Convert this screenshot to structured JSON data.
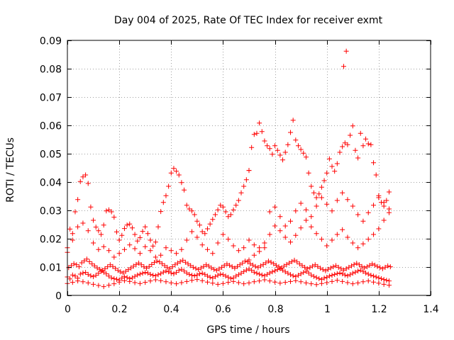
{
  "chart_data": {
    "type": "scatter",
    "title": "Day 004 of 2025, Rate Of TEC Index for receiver exmt",
    "xlabel": "GPS time / hours",
    "ylabel": "ROTI / TECUs",
    "xlim": [
      0,
      1.4
    ],
    "ylim": [
      0,
      0.09
    ],
    "xticks": [
      "0",
      "0.2",
      "0.4",
      "0.6",
      "0.8",
      "1",
      "1.2",
      "1.4"
    ],
    "xtick_values": [
      0,
      0.2,
      0.4,
      0.6,
      0.8,
      1.0,
      1.2,
      1.4
    ],
    "yticks": [
      "0",
      "0.01",
      "0.02",
      "0.03",
      "0.04",
      "0.05",
      "0.06",
      "0.07",
      "0.08",
      "0.09"
    ],
    "ytick_values": [
      0,
      0.01,
      0.02,
      0.03,
      0.04,
      0.05,
      0.06,
      0.07,
      0.08,
      0.09
    ],
    "grid": true,
    "marker": "+",
    "color": "#ff0000",
    "series": [
      {
        "x": [
          0.0,
          0.01,
          0.02,
          0.03,
          0.04,
          0.05,
          0.06,
          0.07,
          0.08,
          0.09,
          0.1,
          0.11,
          0.12,
          0.13,
          0.14,
          0.15,
          0.16,
          0.17,
          0.18,
          0.19,
          0.2,
          0.21,
          0.22,
          0.23,
          0.24,
          0.25,
          0.26,
          0.27,
          0.28,
          0.29,
          0.3,
          0.31,
          0.32,
          0.33,
          0.34,
          0.35,
          0.36,
          0.37,
          0.38,
          0.39,
          0.4,
          0.41,
          0.42,
          0.43,
          0.44,
          0.45,
          0.46,
          0.47,
          0.48,
          0.49,
          0.5,
          0.51,
          0.52,
          0.53,
          0.54,
          0.55,
          0.56,
          0.57,
          0.58,
          0.59,
          0.6,
          0.61,
          0.62,
          0.63,
          0.64,
          0.65,
          0.66,
          0.67,
          0.68,
          0.69,
          0.7,
          0.71,
          0.72,
          0.73,
          0.74,
          0.75,
          0.76,
          0.77,
          0.78,
          0.79,
          0.8,
          0.81,
          0.82,
          0.83,
          0.84,
          0.85,
          0.86,
          0.87,
          0.88,
          0.89,
          0.9,
          0.91,
          0.92,
          0.93,
          0.94,
          0.95,
          0.96,
          0.97,
          0.98,
          0.99,
          1.0,
          1.01,
          1.02,
          1.03,
          1.04,
          1.05,
          1.06,
          1.07,
          1.08,
          1.09,
          1.1,
          1.11,
          1.12,
          1.13,
          1.14,
          1.15,
          1.16,
          1.17,
          1.18,
          1.19,
          1.2,
          1.21,
          1.22,
          1.23,
          1.24
        ],
        "y": [
          0.0065,
          0.0058,
          0.0072,
          0.0068,
          0.0061,
          0.0075,
          0.0079,
          0.0081,
          0.0074,
          0.0069,
          0.0066,
          0.0071,
          0.0078,
          0.0085,
          0.0082,
          0.0076,
          0.0068,
          0.0062,
          0.0059,
          0.0057,
          0.0054,
          0.0061,
          0.0066,
          0.0063,
          0.0059,
          0.0062,
          0.0067,
          0.0072,
          0.0075,
          0.0078,
          0.0081,
          0.0079,
          0.0074,
          0.0071,
          0.0069,
          0.0073,
          0.0077,
          0.0082,
          0.0086,
          0.0083,
          0.0079,
          0.0076,
          0.0081,
          0.0088,
          0.0092,
          0.0086,
          0.0079,
          0.0074,
          0.0071,
          0.0069,
          0.0072,
          0.0076,
          0.0078,
          0.0074,
          0.0068,
          0.0064,
          0.0061,
          0.0066,
          0.0071,
          0.0075,
          0.0073,
          0.0068,
          0.0064,
          0.0059,
          0.0062,
          0.0068,
          0.0073,
          0.0078,
          0.0084,
          0.0089,
          0.0093,
          0.0088,
          0.0082,
          0.0078,
          0.0075,
          0.0072,
          0.0069,
          0.0074,
          0.0079,
          0.0083,
          0.0087,
          0.0091,
          0.0094,
          0.0089,
          0.0083,
          0.0078,
          0.0073,
          0.0069,
          0.0066,
          0.0071,
          0.0076,
          0.0081,
          0.0085,
          0.0079,
          0.0072,
          0.0067,
          0.0063,
          0.0059,
          0.0056,
          0.0061,
          0.0064,
          0.0068,
          0.0071,
          0.0074,
          0.0077,
          0.0079,
          0.0076,
          0.0072,
          0.0069,
          0.0073,
          0.0078,
          0.0082,
          0.0086,
          0.0089,
          0.0084,
          0.0079,
          0.0075,
          0.0071,
          0.0068,
          0.0065,
          0.0062,
          0.0059,
          0.0056,
          0.0053,
          0.0051
        ]
      },
      {
        "x": [
          0.005,
          0.015,
          0.025,
          0.035,
          0.045,
          0.055,
          0.065,
          0.075,
          0.085,
          0.095,
          0.105,
          0.115,
          0.125,
          0.135,
          0.145,
          0.155,
          0.165,
          0.175,
          0.185,
          0.195,
          0.205,
          0.215,
          0.225,
          0.235,
          0.245,
          0.255,
          0.265,
          0.275,
          0.285,
          0.295,
          0.305,
          0.315,
          0.325,
          0.335,
          0.345,
          0.355,
          0.365,
          0.375,
          0.385,
          0.395,
          0.405,
          0.415,
          0.425,
          0.435,
          0.445,
          0.455,
          0.465,
          0.475,
          0.485,
          0.495,
          0.505,
          0.515,
          0.525,
          0.535,
          0.545,
          0.555,
          0.565,
          0.575,
          0.585,
          0.595,
          0.605,
          0.615,
          0.625,
          0.635,
          0.645,
          0.655,
          0.665,
          0.675,
          0.685,
          0.695,
          0.705,
          0.715,
          0.725,
          0.735,
          0.745,
          0.755,
          0.765,
          0.775,
          0.785,
          0.795,
          0.805,
          0.815,
          0.825,
          0.835,
          0.845,
          0.855,
          0.865,
          0.875,
          0.885,
          0.895,
          0.905,
          0.915,
          0.925,
          0.935,
          0.945,
          0.955,
          0.965,
          0.975,
          0.985,
          0.995,
          1.005,
          1.015,
          1.025,
          1.035,
          1.045,
          1.055,
          1.065,
          1.075,
          1.085,
          1.095,
          1.105,
          1.115,
          1.125,
          1.135,
          1.145,
          1.155,
          1.165,
          1.175,
          1.185,
          1.195,
          1.205,
          1.215,
          1.225,
          1.235,
          1.245
        ],
        "y": [
          0.0098,
          0.0105,
          0.0112,
          0.0108,
          0.0101,
          0.0115,
          0.0122,
          0.0128,
          0.0119,
          0.0111,
          0.0104,
          0.0097,
          0.0092,
          0.0088,
          0.0094,
          0.0101,
          0.0108,
          0.0102,
          0.0095,
          0.0088,
          0.0083,
          0.0079,
          0.0085,
          0.0091,
          0.0097,
          0.0103,
          0.0109,
          0.0114,
          0.0108,
          0.0101,
          0.0096,
          0.0102,
          0.0109,
          0.0116,
          0.0121,
          0.0118,
          0.0112,
          0.0105,
          0.0099,
          0.0094,
          0.0101,
          0.0108,
          0.0114,
          0.0119,
          0.0124,
          0.0117,
          0.0111,
          0.0105,
          0.0099,
          0.0095,
          0.0091,
          0.0097,
          0.0102,
          0.0108,
          0.0103,
          0.0097,
          0.0092,
          0.0088,
          0.0093,
          0.0099,
          0.0105,
          0.0111,
          0.0106,
          0.0101,
          0.0096,
          0.0102,
          0.0108,
          0.0114,
          0.0121,
          0.0118,
          0.0112,
          0.0107,
          0.0102,
          0.0098,
          0.0104,
          0.0109,
          0.0115,
          0.0121,
          0.0117,
          0.0112,
          0.0106,
          0.0101,
          0.0097,
          0.0103,
          0.0109,
          0.0114,
          0.0119,
          0.0124,
          0.0118,
          0.0111,
          0.0105,
          0.0099,
          0.0094,
          0.0098,
          0.0103,
          0.0108,
          0.0102,
          0.0096,
          0.0091,
          0.0087,
          0.0092,
          0.0097,
          0.0101,
          0.0105,
          0.0099,
          0.0094,
          0.0089,
          0.0094,
          0.0099,
          0.0104,
          0.0109,
          0.0113,
          0.0108,
          0.0102,
          0.0097,
          0.0101,
          0.0106,
          0.0111,
          0.0107,
          0.0102,
          0.0098,
          0.0094,
          0.0099,
          0.0104,
          0.0101
        ]
      },
      {
        "x": [
          0.0,
          0.02,
          0.04,
          0.06,
          0.08,
          0.1,
          0.12,
          0.14,
          0.16,
          0.18,
          0.2,
          0.22,
          0.24,
          0.26,
          0.28,
          0.3,
          0.32,
          0.34,
          0.36,
          0.38,
          0.4,
          0.42,
          0.44,
          0.46,
          0.48,
          0.5,
          0.52,
          0.54,
          0.56,
          0.58,
          0.6,
          0.62,
          0.64,
          0.66,
          0.68,
          0.7,
          0.72,
          0.74,
          0.76,
          0.78,
          0.8,
          0.82,
          0.84,
          0.86,
          0.88,
          0.9,
          0.92,
          0.94,
          0.96,
          0.98,
          1.0,
          1.02,
          1.04,
          1.06,
          1.08,
          1.1,
          1.12,
          1.14,
          1.16,
          1.18,
          1.2,
          1.22,
          1.24
        ],
        "y": [
          0.0042,
          0.0046,
          0.0051,
          0.0048,
          0.0044,
          0.0039,
          0.0035,
          0.0031,
          0.0036,
          0.0041,
          0.0047,
          0.0052,
          0.0049,
          0.0045,
          0.0042,
          0.0046,
          0.0051,
          0.0055,
          0.0052,
          0.0048,
          0.0044,
          0.0041,
          0.0045,
          0.0049,
          0.0053,
          0.0056,
          0.0052,
          0.0047,
          0.0043,
          0.0039,
          0.0042,
          0.0046,
          0.0049,
          0.0045,
          0.0041,
          0.0044,
          0.0048,
          0.0051,
          0.0055,
          0.0051,
          0.0047,
          0.0043,
          0.0046,
          0.0049,
          0.0052,
          0.0048,
          0.0044,
          0.0041,
          0.0038,
          0.0042,
          0.0045,
          0.0049,
          0.0053,
          0.0049,
          0.0045,
          0.0041,
          0.0044,
          0.0048,
          0.0051,
          0.0047,
          0.0043,
          0.0039,
          0.0036
        ]
      },
      {
        "x": [
          0.0,
          0.01,
          0.02,
          0.03,
          0.04,
          0.05,
          0.06,
          0.07,
          0.08,
          0.09,
          0.1,
          0.11,
          0.12,
          0.13,
          0.14,
          0.15,
          0.16,
          0.17,
          0.18,
          0.19,
          0.2,
          0.21,
          0.22,
          0.23,
          0.24,
          0.25,
          0.26,
          0.27,
          0.28,
          0.29,
          0.3,
          0.31,
          0.32,
          0.33,
          0.34,
          0.35,
          0.36,
          0.37,
          0.38,
          0.39,
          0.4,
          0.41,
          0.42,
          0.43,
          0.44,
          0.45,
          0.46,
          0.47,
          0.48,
          0.49,
          0.5,
          0.51,
          0.52,
          0.53,
          0.54,
          0.55,
          0.56,
          0.57,
          0.58,
          0.59,
          0.6,
          0.61,
          0.62,
          0.63,
          0.64,
          0.65,
          0.66,
          0.67,
          0.68,
          0.69,
          0.7
        ],
        "y": [
          0.0152,
          0.0234,
          0.0218,
          0.0295,
          0.0338,
          0.0402,
          0.0418,
          0.0425,
          0.0395,
          0.0312,
          0.0265,
          0.0241,
          0.0228,
          0.0215,
          0.0248,
          0.0298,
          0.0302,
          0.0295,
          0.0276,
          0.0224,
          0.0195,
          0.0212,
          0.0236,
          0.0248,
          0.0252,
          0.0238,
          0.0215,
          0.0192,
          0.0204,
          0.0226,
          0.0242,
          0.0218,
          0.0195,
          0.0174,
          0.0188,
          0.0242,
          0.0296,
          0.0328,
          0.0352,
          0.0385,
          0.0432,
          0.0448,
          0.0438,
          0.0425,
          0.0398,
          0.0372,
          0.0318,
          0.0305,
          0.0298,
          0.0285,
          0.0262,
          0.0248,
          0.0225,
          0.0218,
          0.0235,
          0.0252,
          0.0268,
          0.0285,
          0.0302,
          0.0318,
          0.0312,
          0.0295,
          0.0278,
          0.0285,
          0.0302,
          0.0318,
          0.0335,
          0.0362,
          0.0385,
          0.0408,
          0.0441
        ]
      },
      {
        "x": [
          0.7,
          0.71,
          0.72,
          0.73,
          0.74,
          0.75,
          0.76,
          0.77,
          0.78,
          0.79,
          0.8,
          0.81,
          0.82,
          0.83,
          0.84,
          0.85,
          0.86,
          0.87,
          0.88,
          0.89,
          0.9,
          0.91,
          0.92,
          0.93,
          0.94,
          0.95,
          0.96,
          0.97,
          0.98,
          0.99,
          1.0,
          1.01,
          1.02,
          1.03,
          1.04,
          1.05,
          1.06,
          1.07,
          1.08,
          1.09,
          1.1,
          1.11,
          1.12,
          1.13,
          1.14,
          1.15,
          1.16,
          1.17,
          1.18,
          1.19,
          1.2,
          1.21,
          1.22,
          1.23,
          1.24
        ],
        "y": [
          0.0441,
          0.0522,
          0.0568,
          0.0572,
          0.0608,
          0.0578,
          0.0545,
          0.0528,
          0.0518,
          0.0498,
          0.0528,
          0.0512,
          0.0495,
          0.0478,
          0.0505,
          0.0532,
          0.0575,
          0.0618,
          0.0548,
          0.0528,
          0.0515,
          0.0502,
          0.0488,
          0.0432,
          0.0385,
          0.0362,
          0.0345,
          0.0358,
          0.0382,
          0.0405,
          0.0432,
          0.0482,
          0.0455,
          0.0438,
          0.0465,
          0.0505,
          0.0525,
          0.0538,
          0.0532,
          0.0565,
          0.0598,
          0.0512,
          0.0485,
          0.0572,
          0.0528,
          0.0552,
          0.0535,
          0.0532,
          0.0468,
          0.0425,
          0.0352,
          0.0328,
          0.0315,
          0.0335,
          0.0365
        ]
      },
      {
        "x": [
          0.0,
          0.02,
          0.04,
          0.06,
          0.08,
          0.1,
          0.12,
          0.14,
          0.16,
          0.18,
          0.2,
          0.22,
          0.24,
          0.26,
          0.28,
          0.3,
          0.32,
          0.34,
          0.36,
          0.38,
          0.4,
          0.42,
          0.44,
          0.46,
          0.48,
          0.5,
          0.52,
          0.54,
          0.56,
          0.58,
          0.6,
          0.62,
          0.64,
          0.66,
          0.68,
          0.7,
          0.72,
          0.74,
          0.76,
          0.78,
          0.8,
          0.82,
          0.84,
          0.86,
          0.88,
          0.9,
          0.92,
          0.94,
          0.96,
          0.98,
          1.0,
          1.02,
          1.04,
          1.06,
          1.08,
          1.1,
          1.12,
          1.14,
          1.16,
          1.18,
          1.2,
          1.22,
          1.24
        ],
        "y": [
          0.0168,
          0.0195,
          0.0242,
          0.0255,
          0.0228,
          0.0185,
          0.0162,
          0.0172,
          0.0158,
          0.0135,
          0.0148,
          0.0162,
          0.0178,
          0.0165,
          0.0148,
          0.0172,
          0.0158,
          0.0135,
          0.0142,
          0.0168,
          0.0158,
          0.0148,
          0.0162,
          0.0195,
          0.0225,
          0.0205,
          0.0178,
          0.0162,
          0.0148,
          0.0185,
          0.0215,
          0.0198,
          0.0175,
          0.0158,
          0.0168,
          0.0195,
          0.0178,
          0.0155,
          0.0168,
          0.0215,
          0.0245,
          0.0228,
          0.0205,
          0.0188,
          0.0212,
          0.0238,
          0.0265,
          0.0242,
          0.0218,
          0.0198,
          0.0175,
          0.0195,
          0.0215,
          0.0232,
          0.0205,
          0.0185,
          0.0168,
          0.0182,
          0.0198,
          0.0215,
          0.0235,
          0.0265,
          0.0292
        ]
      },
      {
        "x": [
          0.7,
          0.72,
          0.74,
          0.76,
          0.78,
          0.8,
          0.82,
          0.84,
          0.86,
          0.88,
          0.9,
          0.92,
          0.94,
          0.96,
          0.98,
          1.0,
          1.02,
          1.04,
          1.06,
          1.08,
          1.1,
          1.12,
          1.14,
          1.16,
          1.18,
          1.2,
          1.22,
          1.24
        ],
        "y": [
          0.0125,
          0.0142,
          0.0168,
          0.0185,
          0.0295,
          0.0312,
          0.0278,
          0.0245,
          0.0262,
          0.0298,
          0.0325,
          0.0302,
          0.0278,
          0.0315,
          0.0345,
          0.0322,
          0.0298,
          0.0335,
          0.0362,
          0.0338,
          0.0315,
          0.0285,
          0.0262,
          0.0292,
          0.0318,
          0.0345,
          0.0328,
          0.0305
        ]
      },
      {
        "x": [
          1.065,
          1.075
        ],
        "y": [
          0.0808,
          0.0862
        ]
      }
    ]
  }
}
